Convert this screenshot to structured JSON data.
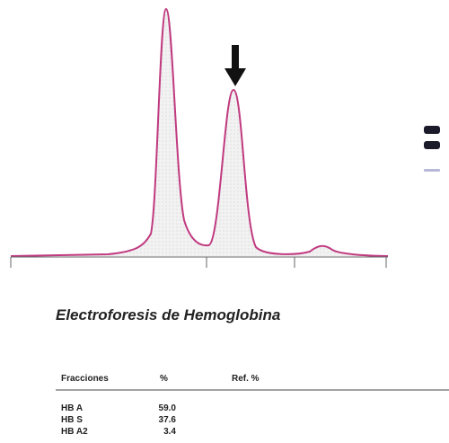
{
  "report": {
    "title": "Electroforesis de Hemoglobina",
    "table": {
      "headers": [
        "Fracciones",
        "%",
        "Ref. %"
      ],
      "rows": [
        [
          "HB A",
          "59.0"
        ],
        [
          "HB S",
          "37.6"
        ],
        [
          "HB A2",
          "3.4"
        ]
      ]
    }
  }
}
